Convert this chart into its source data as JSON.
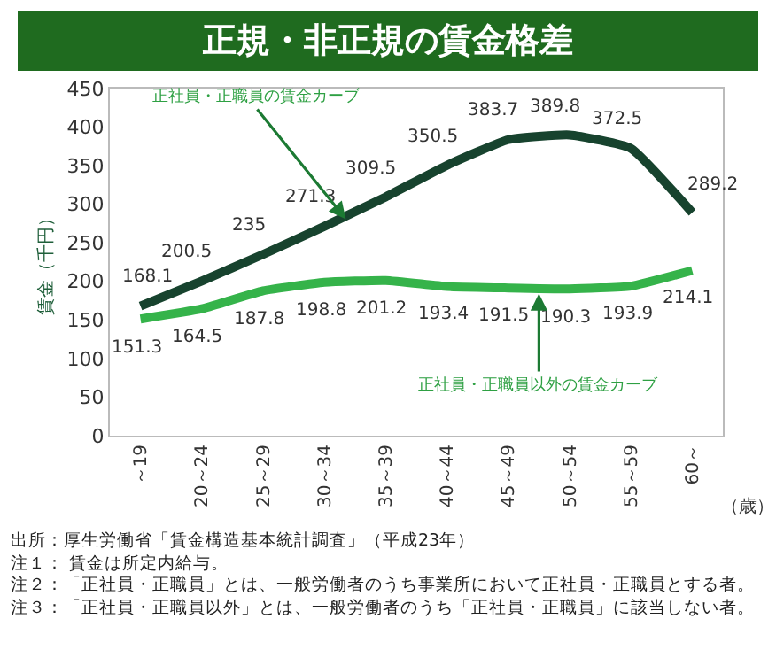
{
  "chart_data": {
    "type": "line",
    "title": "正規・非正規の賃金格差",
    "ylabel": "賃金（千円）",
    "xlabel": "（歳）",
    "categories": [
      "～19",
      "20～24",
      "25～29",
      "30～34",
      "35～39",
      "40～44",
      "45～49",
      "50～54",
      "55～59",
      "60～"
    ],
    "series": [
      {
        "name": "正社員・正職員の賃金カーブ",
        "color": "#17432e",
        "values": [
          168.1,
          200.5,
          235,
          271.3,
          309.5,
          350.5,
          383.7,
          389.8,
          372.5,
          289.2
        ]
      },
      {
        "name": "正社員・正職員以外の賃金カーブ",
        "color": "#35b34a",
        "values": [
          151.3,
          164.5,
          187.8,
          198.8,
          201.2,
          193.4,
          191.5,
          190.3,
          193.9,
          214.1
        ]
      }
    ],
    "ylim": [
      0,
      450
    ],
    "yticks": [
      0,
      50,
      100,
      150,
      200,
      250,
      300,
      350,
      400,
      450
    ],
    "grid": false,
    "legend": false,
    "marker": "none",
    "line_style": "solid",
    "data_labels": true,
    "annotations": [
      "出所：厚生労働省「賃金構造基本統計調査」（平成23年）",
      "注１： 賃金は所定内給与。",
      "注２：「正社員・正職員」とは、一般労働者のうち事業所において正社員・正職員とする者。",
      "注３：「正社員・正職員以外」とは、一般労働者のうち「正社員・正職員」に該当しない者。"
    ]
  }
}
